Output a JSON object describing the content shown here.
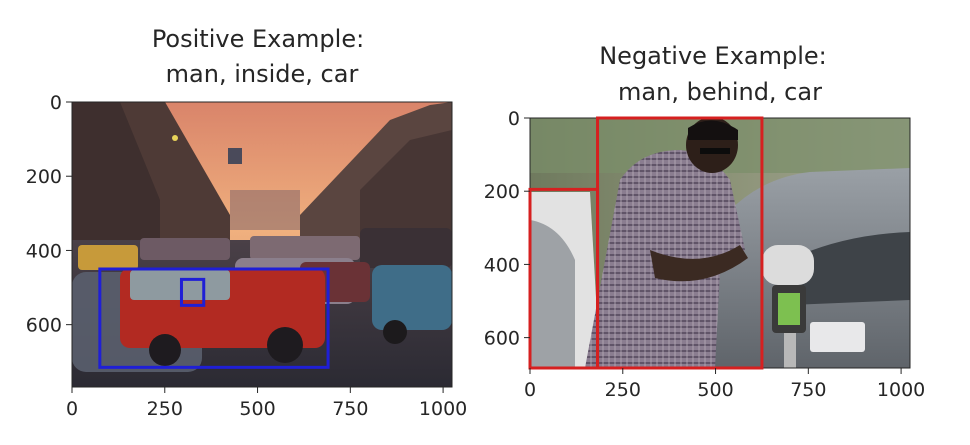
{
  "chart_data": [
    {
      "type": "image",
      "title_line1": "Positive Example:",
      "title_line2": "man, inside, car",
      "xticks": [
        "0",
        "250",
        "500",
        "750",
        "1000"
      ],
      "yticks": [
        "0",
        "200",
        "400",
        "600"
      ],
      "xlim": [
        0,
        1024
      ],
      "ylim": [
        0,
        768
      ],
      "boxes": [
        {
          "color": "#1f1fd6",
          "x0": 75,
          "y0": 450,
          "x1": 690,
          "y1": 715
        },
        {
          "color": "#1f1fd6",
          "x0": 295,
          "y0": 478,
          "x1": 355,
          "y1": 548
        }
      ]
    },
    {
      "type": "image",
      "title_line1": "Negative Example:",
      "title_line2": "man, behind, car",
      "xticks": [
        "0",
        "250",
        "500",
        "750",
        "1000"
      ],
      "yticks": [
        "0",
        "200",
        "400",
        "600"
      ],
      "xlim": [
        0,
        1024
      ],
      "ylim": [
        0,
        683
      ],
      "boxes": [
        {
          "color": "#d62020",
          "x0": 182,
          "y0": 0,
          "x1": 625,
          "y1": 683
        },
        {
          "color": "#d62020",
          "x0": 0,
          "y0": 195,
          "x1": 182,
          "y1": 683
        }
      ]
    }
  ]
}
